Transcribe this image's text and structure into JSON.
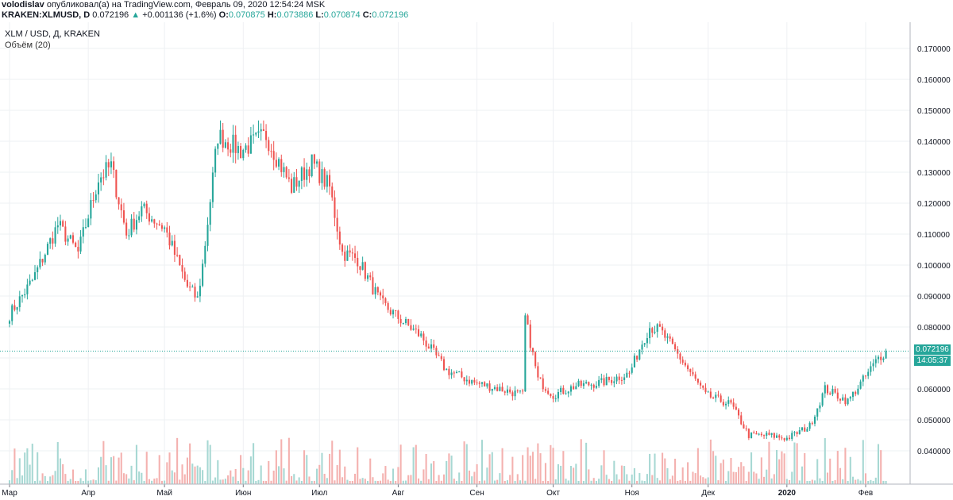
{
  "header": {
    "author": "volodislav",
    "published_text": "опубликовал(а) на TradingView.com, Февраль 09, 2020 12:54:24 MSK",
    "symbol": "KRAKEN:XLMUSD, D",
    "last": "0.072196",
    "arrow": "▲",
    "change": "+0.001136 (+1.6%)",
    "o_label": "O:",
    "o_value": "0.070875",
    "h_label": "H:",
    "h_value": "0.073886",
    "l_label": "L:",
    "l_value": "0.070874",
    "c_label": "C:",
    "c_value": "0.072196"
  },
  "legend": {
    "series": "XLM / USD, Д, KRAKEN",
    "volume": "Объём (20)"
  },
  "price_tag": {
    "price": "0.072196",
    "countdown": "14:05:37"
  },
  "colors": {
    "up": "#26a69a",
    "down": "#ef5350",
    "vol_up": "#a7d8d3",
    "vol_down": "#f4b1af",
    "grid": "#eef0f3"
  },
  "chart_data": {
    "type": "candlestick",
    "title": "XLM / USD, Д, KRAKEN",
    "ylim": [
      0.03,
      0.175
    ],
    "y_ticks": [
      "0.040000",
      "0.050000",
      "0.060000",
      "0.070000",
      "0.080000",
      "0.090000",
      "0.100000",
      "0.110000",
      "0.120000",
      "0.130000",
      "0.140000",
      "0.150000",
      "0.160000",
      "0.170000"
    ],
    "x_ticks": [
      "Мар",
      "Апр",
      "Май",
      "Июн",
      "Июл",
      "Авг",
      "Сен",
      "Окт",
      "Ноя",
      "Дек",
      "2020",
      "Фев"
    ],
    "last_price": 0.072196,
    "volume_indicator": "Объём (20)",
    "close_series": {
      "x": [
        "2019-03-01",
        "2019-03-10",
        "2019-03-20",
        "2019-03-28",
        "2019-04-05",
        "2019-04-10",
        "2019-04-16",
        "2019-04-22",
        "2019-05-01",
        "2019-05-10",
        "2019-05-14",
        "2019-05-16",
        "2019-05-22",
        "2019-05-31",
        "2019-06-10",
        "2019-06-20",
        "2019-06-28",
        "2019-07-05",
        "2019-07-10",
        "2019-07-16",
        "2019-07-25",
        "2019-08-01",
        "2019-08-10",
        "2019-08-20",
        "2019-08-31",
        "2019-09-10",
        "2019-09-19",
        "2019-09-20",
        "2019-09-25",
        "2019-10-01",
        "2019-10-10",
        "2019-10-20",
        "2019-10-31",
        "2019-11-05",
        "2019-11-08",
        "2019-11-12",
        "2019-11-20",
        "2019-11-30",
        "2019-12-10",
        "2019-12-17",
        "2019-12-25",
        "2020-01-01",
        "2020-01-10",
        "2020-01-16",
        "2020-01-25",
        "2020-02-01",
        "2020-02-06",
        "2020-02-09"
      ],
      "y": [
        0.084,
        0.095,
        0.113,
        0.104,
        0.128,
        0.132,
        0.11,
        0.118,
        0.112,
        0.093,
        0.089,
        0.1,
        0.142,
        0.137,
        0.142,
        0.125,
        0.133,
        0.125,
        0.104,
        0.102,
        0.088,
        0.083,
        0.077,
        0.066,
        0.062,
        0.06,
        0.058,
        0.083,
        0.063,
        0.058,
        0.061,
        0.062,
        0.065,
        0.075,
        0.08,
        0.079,
        0.07,
        0.058,
        0.055,
        0.045,
        0.045,
        0.044,
        0.048,
        0.06,
        0.056,
        0.064,
        0.07,
        0.072196
      ]
    }
  }
}
